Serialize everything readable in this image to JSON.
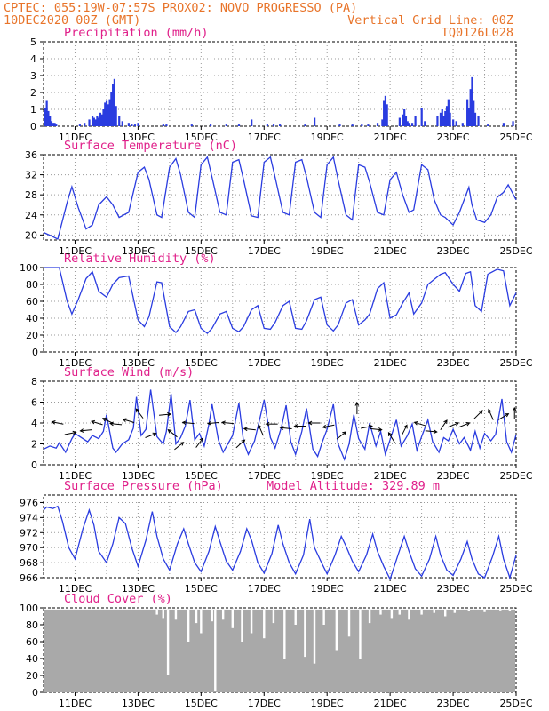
{
  "header": {
    "line1": "CPTEC:   055:19W-07:57S   PROX02: NOVO PROGRESSO (PA)",
    "line2": "10DEC2020 00Z (GMT)",
    "grid_note": "Vertical Grid Line: 00Z",
    "code": "TQ0126L028"
  },
  "colors": {
    "header": "#e8742a",
    "title": "#e0208a",
    "line": "#2a3ce0",
    "bar": "#2a3ce0",
    "cloud": "#a9a9a9",
    "arrow": "#000000"
  },
  "chart_data": [
    {
      "type": "bar",
      "title": "Precipitation (mm/h)",
      "x_ticks": [
        "11DEC",
        "13DEC",
        "15DEC",
        "17DEC",
        "19DEC",
        "21DEC",
        "23DEC",
        "25DEC"
      ],
      "x_range_days": [
        10,
        25
      ],
      "y_ticks": [
        0,
        1,
        2,
        3,
        4,
        5
      ],
      "ylim": [
        0,
        5
      ],
      "x": [
        10.05,
        10.1,
        10.15,
        10.2,
        10.25,
        10.3,
        10.35,
        10.4,
        11.15,
        11.3,
        11.45,
        11.55,
        11.6,
        11.65,
        11.7,
        11.75,
        11.8,
        11.85,
        11.9,
        11.95,
        12.0,
        12.05,
        12.1,
        12.15,
        12.2,
        12.25,
        12.3,
        12.4,
        12.5,
        12.7,
        12.8,
        12.9,
        13.0,
        13.8,
        13.9,
        14.7,
        15.3,
        15.8,
        16.2,
        16.6,
        17.1,
        17.3,
        17.5,
        18.3,
        18.6,
        19.4,
        19.8,
        20.1,
        20.3,
        20.6,
        20.75,
        20.8,
        20.85,
        20.9,
        21.3,
        21.4,
        21.45,
        21.5,
        21.55,
        21.6,
        21.7,
        21.8,
        22.0,
        22.1,
        22.5,
        22.6,
        22.65,
        22.7,
        22.75,
        22.8,
        22.85,
        22.9,
        23.0,
        23.1,
        23.3,
        23.45,
        23.5,
        23.55,
        23.6,
        23.65,
        23.7,
        23.8,
        24.1,
        24.6,
        24.9
      ],
      "values": [
        1.1,
        1.5,
        0.9,
        0.6,
        0.3,
        0.2,
        0.2,
        0.1,
        0.1,
        0.2,
        0.4,
        0.6,
        0.5,
        0.4,
        0.6,
        0.5,
        0.8,
        0.7,
        1.0,
        1.4,
        1.5,
        1.3,
        1.6,
        2.0,
        2.5,
        2.8,
        1.2,
        0.6,
        0.3,
        0.2,
        0.1,
        0.1,
        0.2,
        0.1,
        0.1,
        0.1,
        0.1,
        0.1,
        0.1,
        0.4,
        0.1,
        0.1,
        0.1,
        0.1,
        0.5,
        0.1,
        0.1,
        0.1,
        0.1,
        0.2,
        0.4,
        1.5,
        1.8,
        1.3,
        0.5,
        0.7,
        1.0,
        0.6,
        0.3,
        0.2,
        0.2,
        0.6,
        1.1,
        0.3,
        0.6,
        0.8,
        1.0,
        0.6,
        0.9,
        1.2,
        1.6,
        0.8,
        0.4,
        0.3,
        0.2,
        1.6,
        1.1,
        2.2,
        2.9,
        1.5,
        0.8,
        0.6,
        0.1,
        0.2,
        0.3
      ]
    },
    {
      "type": "line",
      "title": "Surface Temperature (nC)",
      "x_ticks": [
        "11DEC",
        "13DEC",
        "15DEC",
        "17DEC",
        "19DEC",
        "21DEC",
        "23DEC",
        "25DEC"
      ],
      "y_ticks": [
        20,
        24,
        28,
        32,
        36
      ],
      "ylim": [
        19,
        36
      ],
      "x": [
        10.0,
        10.25,
        10.45,
        10.75,
        10.9,
        11.1,
        11.35,
        11.55,
        11.75,
        12.0,
        12.2,
        12.4,
        12.7,
        13.0,
        13.2,
        13.35,
        13.6,
        13.75,
        14.0,
        14.2,
        14.35,
        14.6,
        14.8,
        15.0,
        15.2,
        15.35,
        15.6,
        15.8,
        16.0,
        16.2,
        16.35,
        16.6,
        16.8,
        17.0,
        17.2,
        17.35,
        17.6,
        17.8,
        18.0,
        18.2,
        18.35,
        18.6,
        18.8,
        19.0,
        19.2,
        19.35,
        19.6,
        19.8,
        20.0,
        20.2,
        20.35,
        20.6,
        20.8,
        21.0,
        21.2,
        21.4,
        21.6,
        21.75,
        22.0,
        22.2,
        22.4,
        22.6,
        22.75,
        23.0,
        23.2,
        23.5,
        23.6,
        23.75,
        24.0,
        24.2,
        24.4,
        24.6,
        24.75,
        25.0
      ],
      "values": [
        20.5,
        19.8,
        19.2,
        26.5,
        29.6,
        25.5,
        21.2,
        22.0,
        26.0,
        27.6,
        26.0,
        23.5,
        24.5,
        32.5,
        33.5,
        31.0,
        24.0,
        23.5,
        33.5,
        35.2,
        32.0,
        24.5,
        23.5,
        34.0,
        35.5,
        31.5,
        24.5,
        24.0,
        34.5,
        35.0,
        31.0,
        23.8,
        23.5,
        34.5,
        35.5,
        31.5,
        24.5,
        24.0,
        34.5,
        35.0,
        31.5,
        24.5,
        23.5,
        34.0,
        35.5,
        31.0,
        24.0,
        23.0,
        34.0,
        33.5,
        30.5,
        24.5,
        24.0,
        31.0,
        32.5,
        28.0,
        24.5,
        25.0,
        34.0,
        33.0,
        27.0,
        24.0,
        23.5,
        22.0,
        24.5,
        29.5,
        26.0,
        23.0,
        22.5,
        24.0,
        27.5,
        28.5,
        30.0,
        27.0
      ]
    },
    {
      "type": "line",
      "title": "Relative Humidity (%)",
      "x_ticks": [
        "11DEC",
        "13DEC",
        "15DEC",
        "17DEC",
        "19DEC",
        "21DEC",
        "23DEC",
        "25DEC"
      ],
      "y_ticks": [
        0,
        20,
        40,
        60,
        80,
        100
      ],
      "ylim": [
        0,
        100
      ],
      "x": [
        10.0,
        10.3,
        10.5,
        10.75,
        10.9,
        11.1,
        11.35,
        11.55,
        11.75,
        12.0,
        12.2,
        12.4,
        12.7,
        13.0,
        13.2,
        13.35,
        13.6,
        13.75,
        14.0,
        14.2,
        14.35,
        14.6,
        14.8,
        15.0,
        15.2,
        15.35,
        15.6,
        15.8,
        16.0,
        16.2,
        16.35,
        16.6,
        16.8,
        17.0,
        17.2,
        17.35,
        17.6,
        17.8,
        18.0,
        18.2,
        18.35,
        18.6,
        18.8,
        19.0,
        19.2,
        19.35,
        19.6,
        19.8,
        20.0,
        20.2,
        20.35,
        20.6,
        20.8,
        21.0,
        21.2,
        21.4,
        21.6,
        21.75,
        22.0,
        22.2,
        22.4,
        22.6,
        22.75,
        23.0,
        23.2,
        23.4,
        23.55,
        23.7,
        23.9,
        24.1,
        24.4,
        24.6,
        24.8,
        25.0
      ],
      "values": [
        100,
        100,
        100,
        60,
        45,
        62,
        87,
        95,
        72,
        65,
        80,
        88,
        90,
        38,
        30,
        42,
        83,
        82,
        30,
        23,
        30,
        48,
        50,
        28,
        22,
        28,
        45,
        48,
        28,
        24,
        30,
        50,
        55,
        28,
        27,
        35,
        55,
        60,
        28,
        27,
        37,
        62,
        65,
        32,
        25,
        32,
        58,
        62,
        32,
        38,
        45,
        75,
        82,
        40,
        44,
        58,
        70,
        45,
        58,
        80,
        86,
        92,
        94,
        80,
        72,
        93,
        95,
        55,
        48,
        92,
        98,
        96,
        55,
        70
      ]
    },
    {
      "type": "line",
      "title": "Surface Wind (m/s)",
      "x_ticks": [
        "11DEC",
        "13DEC",
        "15DEC",
        "17DEC",
        "19DEC",
        "21DEC",
        "23DEC",
        "25DEC"
      ],
      "y_ticks": [
        0,
        2,
        4,
        6,
        8
      ],
      "ylim": [
        0,
        8
      ],
      "x": [
        10.0,
        10.2,
        10.4,
        10.5,
        10.7,
        10.9,
        11.0,
        11.2,
        11.4,
        11.55,
        11.75,
        11.9,
        12.0,
        12.2,
        12.3,
        12.5,
        12.7,
        12.85,
        12.95,
        13.1,
        13.25,
        13.4,
        13.6,
        13.8,
        13.9,
        14.05,
        14.2,
        14.35,
        14.5,
        14.65,
        14.8,
        14.95,
        15.1,
        15.25,
        15.35,
        15.55,
        15.7,
        15.85,
        16.0,
        16.2,
        16.35,
        16.5,
        16.7,
        16.85,
        17.0,
        17.2,
        17.35,
        17.55,
        17.7,
        17.85,
        18.0,
        18.2,
        18.35,
        18.55,
        18.7,
        18.85,
        19.0,
        19.2,
        19.35,
        19.55,
        19.7,
        19.85,
        20.0,
        20.2,
        20.35,
        20.55,
        20.7,
        20.85,
        21.0,
        21.2,
        21.35,
        21.55,
        21.7,
        21.85,
        22.0,
        22.2,
        22.35,
        22.55,
        22.7,
        22.85,
        23.0,
        23.2,
        23.35,
        23.55,
        23.7,
        23.85,
        24.0,
        24.2,
        24.35,
        24.55,
        24.7,
        24.85,
        25.0
      ],
      "values": [
        1.5,
        1.8,
        1.6,
        2.1,
        1.2,
        2.5,
        3.0,
        2.6,
        2.2,
        2.8,
        2.5,
        3.2,
        4.8,
        1.6,
        1.2,
        2.0,
        2.4,
        3.5,
        6.5,
        2.8,
        3.4,
        7.2,
        2.7,
        2.0,
        3.2,
        6.8,
        2.0,
        2.6,
        3.7,
        6.2,
        2.4,
        3.0,
        1.8,
        3.9,
        5.8,
        2.4,
        1.2,
        2.0,
        2.8,
        5.9,
        2.2,
        1.0,
        2.3,
        4.2,
        6.2,
        2.6,
        1.6,
        3.6,
        5.7,
        2.2,
        1.0,
        3.2,
        5.4,
        1.5,
        0.8,
        2.2,
        3.4,
        5.8,
        2.0,
        0.5,
        2.0,
        4.8,
        2.5,
        1.5,
        4.0,
        1.8,
        3.2,
        1.0,
        2.4,
        4.3,
        1.8,
        2.8,
        3.9,
        1.4,
        2.7,
        4.3,
        2.2,
        1.2,
        2.6,
        2.3,
        3.4,
        2.0,
        2.6,
        1.4,
        3.2,
        1.6,
        3.0,
        2.3,
        2.9,
        6.3,
        2.2,
        1.2,
        2.9
      ],
      "direction_arrows": {
        "x": [
          10.45,
          10.85,
          11.35,
          11.7,
          12.05,
          12.3,
          12.7,
          13.05,
          13.4,
          13.85,
          14.1,
          14.3,
          14.6,
          14.95,
          15.4,
          15.85,
          16.25,
          16.55,
          16.9,
          17.25,
          17.7,
          18.15,
          18.6,
          19.05,
          19.45,
          19.95,
          20.25,
          20.55,
          21.05,
          21.45,
          21.95,
          22.3,
          22.7,
          23.0,
          23.35,
          23.8,
          24.2,
          24.6,
          24.95
        ],
        "level": [
          4.0,
          3.0,
          3.3,
          4.0,
          4.2,
          3.9,
          4.2,
          4.9,
          2.8,
          4.8,
          3.0,
          1.8,
          4.0,
          2.1,
          4.0,
          4.0,
          2.0,
          3.4,
          3.3,
          3.9,
          3.5,
          3.7,
          4.0,
          3.7,
          2.8,
          5.4,
          3.6,
          3.4,
          2.6,
          3.3,
          3.9,
          3.2,
          3.8,
          3.8,
          3.8,
          4.8,
          4.8,
          4.6,
          4.9
        ],
        "u": [
          -1,
          1,
          -1,
          -1,
          -1,
          -1,
          -1,
          -0.3,
          1,
          1,
          -1,
          1,
          -1,
          0.6,
          -1,
          -1,
          1,
          -1,
          -0.4,
          -1,
          -1,
          -1,
          -1,
          -1,
          1,
          0,
          1,
          1,
          -0.5,
          0.4,
          -1,
          1,
          0.4,
          1,
          1,
          0.7,
          -0.4,
          1,
          0
        ],
        "v": [
          0.2,
          0.2,
          -0.1,
          0.3,
          0.5,
          0.1,
          0.3,
          0.4,
          0.4,
          0.1,
          0.8,
          0.8,
          0.1,
          0.8,
          -0.1,
          0.1,
          0.9,
          0.1,
          0.9,
          0.0,
          0.1,
          0.0,
          0.0,
          -0.2,
          0.8,
          1.0,
          0.2,
          -0.1,
          0.8,
          0.8,
          0.3,
          -0.1,
          0.6,
          0.4,
          0.4,
          0.7,
          0.9,
          0.6,
          1.0
        ]
      }
    },
    {
      "type": "line",
      "title": "Surface Pressure (hPa)",
      "annotation": "Model Altitude: 329.89  m",
      "x_ticks": [
        "11DEC",
        "13DEC",
        "15DEC",
        "17DEC",
        "19DEC",
        "21DEC",
        "23DEC",
        "25DEC"
      ],
      "y_ticks": [
        966,
        968,
        970,
        972,
        974,
        976
      ],
      "ylim": [
        966,
        977
      ],
      "x": [
        10.0,
        10.1,
        10.3,
        10.45,
        10.6,
        10.8,
        11.0,
        11.25,
        11.45,
        11.6,
        11.75,
        12.0,
        12.2,
        12.4,
        12.6,
        12.8,
        13.0,
        13.25,
        13.45,
        13.6,
        13.8,
        14.0,
        14.25,
        14.45,
        14.6,
        14.8,
        15.0,
        15.25,
        15.45,
        15.6,
        15.8,
        16.0,
        16.25,
        16.45,
        16.6,
        16.8,
        17.0,
        17.25,
        17.45,
        17.6,
        17.8,
        18.0,
        18.25,
        18.45,
        18.6,
        18.8,
        19.0,
        19.25,
        19.45,
        19.6,
        19.8,
        20.0,
        20.25,
        20.45,
        20.6,
        20.8,
        21.0,
        21.25,
        21.45,
        21.6,
        21.8,
        22.0,
        22.25,
        22.45,
        22.6,
        22.8,
        23.0,
        23.25,
        23.45,
        23.6,
        23.8,
        24.0,
        24.25,
        24.45,
        24.6,
        24.8,
        25.0
      ],
      "values": [
        975.0,
        975.4,
        975.2,
        975.5,
        973.5,
        970.0,
        968.5,
        972.5,
        975.0,
        973.0,
        969.5,
        968.0,
        970.5,
        974.0,
        973.2,
        970.0,
        967.5,
        971.0,
        974.8,
        971.5,
        968.5,
        967.0,
        970.5,
        972.5,
        970.5,
        968.0,
        966.8,
        969.5,
        972.8,
        970.8,
        968.2,
        967.0,
        969.5,
        972.5,
        971.0,
        968.0,
        966.6,
        969.2,
        973.0,
        970.5,
        968.0,
        966.5,
        969.0,
        973.8,
        970.0,
        968.2,
        966.5,
        969.0,
        971.5,
        970.2,
        968.2,
        966.8,
        969.0,
        971.8,
        969.5,
        967.5,
        965.8,
        969.0,
        971.5,
        969.5,
        967.2,
        966.2,
        968.5,
        971.5,
        969.0,
        967.0,
        966.3,
        968.5,
        970.8,
        968.5,
        966.5,
        966.0,
        968.8,
        971.5,
        968.5,
        966.0,
        969.0
      ]
    },
    {
      "type": "bar",
      "title": "Cloud Cover (%)",
      "x_ticks": [
        "11DEC",
        "13DEC",
        "15DEC",
        "17DEC",
        "19DEC",
        "21DEC",
        "23DEC",
        "25DEC"
      ],
      "y_ticks": [
        0,
        20,
        40,
        60,
        80,
        100
      ],
      "ylim": [
        0,
        100
      ],
      "baseline": 98,
      "dips": {
        "x": [
          13.6,
          13.8,
          13.95,
          14.2,
          14.6,
          14.85,
          15.0,
          15.35,
          15.45,
          15.7,
          16.0,
          16.3,
          16.6,
          17.0,
          17.3,
          17.65,
          18.0,
          18.3,
          18.6,
          18.9,
          19.3,
          19.7,
          20.05,
          20.35,
          20.7,
          21.05,
          21.3,
          21.6,
          22.0,
          22.4,
          22.75,
          23.05,
          23.5,
          24.0,
          24.5,
          24.8
        ],
        "values": [
          92,
          88,
          20,
          86,
          60,
          82,
          70,
          84,
          2,
          86,
          76,
          60,
          70,
          64,
          82,
          40,
          80,
          42,
          34,
          80,
          50,
          66,
          40,
          82,
          92,
          88,
          92,
          86,
          92,
          94,
          90,
          94,
          96,
          95,
          97,
          96
        ]
      }
    }
  ]
}
